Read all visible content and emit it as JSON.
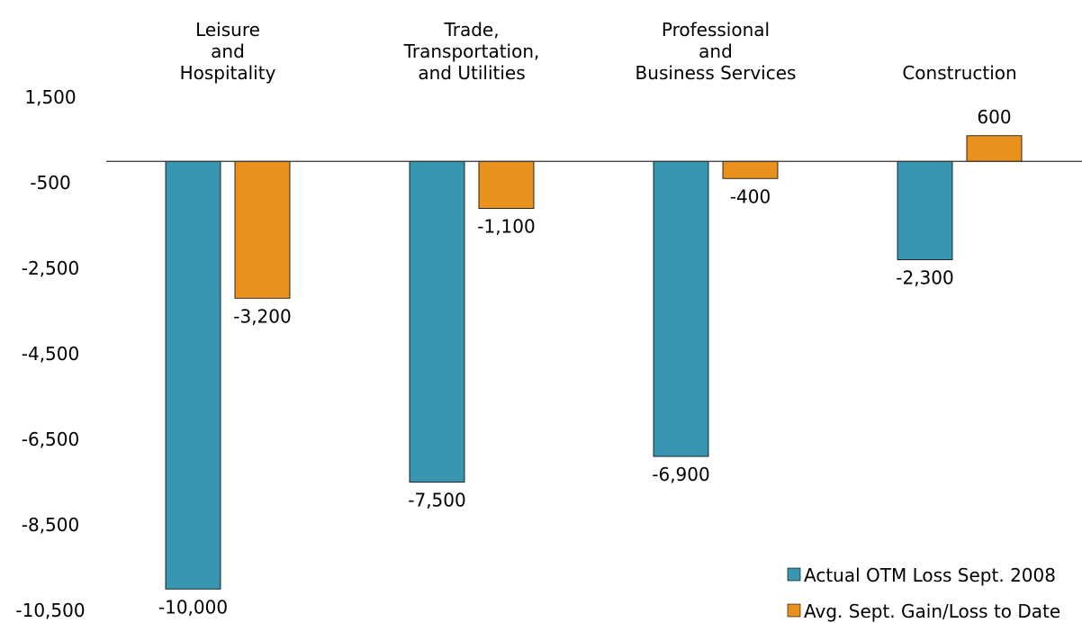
{
  "chart_data": {
    "type": "bar",
    "title": "",
    "xlabel": "",
    "ylabel": "",
    "ylim": [
      -10500,
      1500
    ],
    "yticks": [
      1500,
      -500,
      -2500,
      -4500,
      -6500,
      -8500,
      -10500
    ],
    "ytick_labels": [
      "1,500",
      "-500",
      "-2,500",
      "-4,500",
      "-6,500",
      "-8,500",
      "-10,500"
    ],
    "categories": [
      [
        "Leisure",
        "and",
        "Hospitality"
      ],
      [
        "Trade,",
        "Transportation,",
        "and Utilities"
      ],
      [
        "Professional",
        "and",
        "Business Services"
      ],
      [
        "Construction"
      ]
    ],
    "series": [
      {
        "name": "Actual OTM Loss Sept. 2008",
        "color": "#3996b0",
        "values": [
          -10000,
          -7500,
          -6900,
          -2300
        ],
        "labels": [
          "-10,000",
          "-7,500",
          "-6,900",
          "-2,300"
        ]
      },
      {
        "name": "Avg. Sept. Gain/Loss to Date",
        "color": "#e8921d",
        "values": [
          -3200,
          -1100,
          -400,
          600
        ],
        "labels": [
          "-3,200",
          "-1,100",
          "-400",
          "600"
        ]
      }
    ],
    "grid": false,
    "legend_position": "bottom-right"
  }
}
